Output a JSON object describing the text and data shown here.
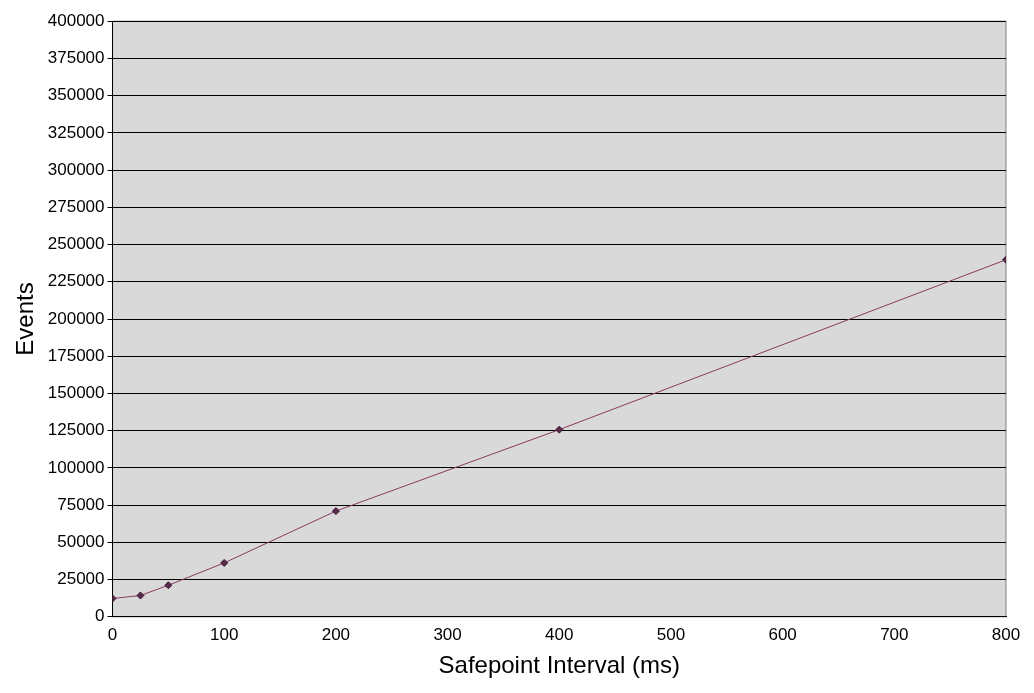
{
  "chart_data": {
    "type": "line",
    "xlabel": "Safepoint Interval (ms)",
    "ylabel": "Events",
    "x": [
      0,
      25,
      50,
      100,
      200,
      400,
      800
    ],
    "series": [
      {
        "color": "#8b3a62",
        "values": [
          12300,
          14300,
          21200,
          36200,
          71000,
          125700,
          239800
        ]
      }
    ],
    "xlim": [
      0,
      800
    ],
    "xticks": [
      0,
      100,
      200,
      300,
      400,
      500,
      600,
      700,
      800
    ],
    "ylim": [
      0,
      400000
    ],
    "yticks": [
      0,
      25000,
      50000,
      75000,
      100000,
      125000,
      150000,
      175000,
      200000,
      225000,
      250000,
      275000,
      300000,
      325000,
      350000,
      375000,
      400000
    ],
    "grid": "y",
    "legend": false,
    "marker": "diamond",
    "line_style": "solid"
  }
}
